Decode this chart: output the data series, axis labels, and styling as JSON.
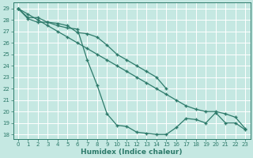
{
  "xlabel": "Humidex (Indice chaleur)",
  "bg_color": "#c5e8e2",
  "grid_color": "#b8ddd7",
  "line_color": "#2d7a6a",
  "xlim": [
    -0.5,
    23.5
  ],
  "ylim": [
    17.6,
    29.5
  ],
  "yticks": [
    18,
    19,
    20,
    21,
    22,
    23,
    24,
    25,
    26,
    27,
    28,
    29
  ],
  "xticks": [
    0,
    1,
    2,
    3,
    4,
    5,
    6,
    7,
    8,
    9,
    10,
    11,
    12,
    13,
    14,
    15,
    16,
    17,
    18,
    19,
    20,
    21,
    22,
    23
  ],
  "line_diagonal_x": [
    0,
    1,
    2,
    3,
    4,
    5,
    6,
    7,
    8,
    9,
    10,
    11,
    12,
    13,
    14,
    15,
    16,
    17,
    18,
    19,
    20,
    21,
    22,
    23
  ],
  "line_diagonal_y": [
    29.0,
    28.5,
    28.0,
    27.5,
    27.0,
    26.5,
    26.0,
    25.5,
    25.0,
    24.5,
    24.0,
    23.5,
    23.0,
    22.5,
    22.0,
    21.5,
    21.0,
    20.5,
    20.2,
    20.0,
    20.0,
    19.8,
    19.5,
    18.5
  ],
  "line_steep_x": [
    0,
    1,
    2,
    3,
    4,
    5,
    6,
    7,
    8,
    9,
    10,
    11,
    12,
    13,
    14,
    15,
    16,
    17,
    18,
    19,
    20,
    21,
    22,
    23
  ],
  "line_steep_y": [
    29.0,
    28.1,
    27.8,
    27.8,
    27.5,
    27.3,
    27.2,
    24.5,
    22.3,
    19.8,
    18.8,
    18.7,
    18.2,
    18.1,
    18.0,
    18.0,
    18.6,
    19.4,
    19.3,
    19.0,
    19.9,
    19.0,
    19.0,
    18.4
  ],
  "line_mid_x": [
    0,
    1,
    2,
    3,
    4,
    5,
    6,
    7,
    8,
    9,
    10,
    11,
    12,
    13,
    14,
    15
  ],
  "line_mid_y": [
    29.0,
    28.2,
    28.2,
    27.8,
    27.7,
    27.5,
    26.9,
    26.8,
    26.5,
    25.8,
    25.0,
    24.5,
    24.0,
    23.5,
    23.0,
    22.0
  ]
}
